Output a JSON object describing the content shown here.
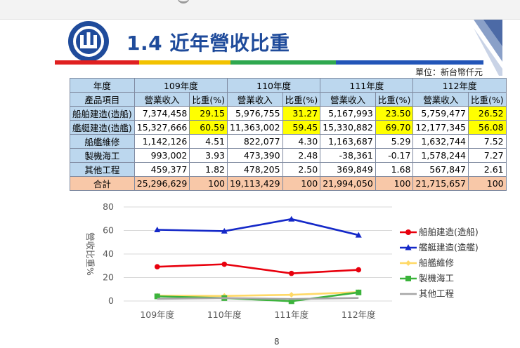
{
  "title": "1.4 近年營收比重",
  "unit_label": "單位：新台幣仟元",
  "page_number": "8",
  "table": {
    "year_header_label": "年度",
    "item_header_label": "產品項目",
    "years": [
      "109年度",
      "110年度",
      "111年度",
      "112年度"
    ],
    "sub_headers": [
      "營業收入",
      "比重(%)"
    ],
    "rows": [
      {
        "name": "船舶建造(造船)",
        "cells": [
          [
            "7,374,458",
            "29.15"
          ],
          [
            "5,976,755",
            "31.27"
          ],
          [
            "5,167,993",
            "23.50"
          ],
          [
            "5,759,477",
            "26.52"
          ]
        ],
        "highlight": true
      },
      {
        "name": "艦艇建造(造艦)",
        "cells": [
          [
            "15,327,666",
            "60.59"
          ],
          [
            "11,363,002",
            "59.45"
          ],
          [
            "15,330,882",
            "69.70"
          ],
          [
            "12,177,345",
            "56.08"
          ]
        ],
        "highlight": true
      },
      {
        "name": "船艦維修",
        "cells": [
          [
            "1,142,126",
            "4.51"
          ],
          [
            "822,077",
            "4.30"
          ],
          [
            "1,163,687",
            "5.29"
          ],
          [
            "1,632,744",
            "7.52"
          ]
        ],
        "highlight": false
      },
      {
        "name": "製機海工",
        "cells": [
          [
            "993,002",
            "3.93"
          ],
          [
            "473,390",
            "2.48"
          ],
          [
            "-38,361",
            "-0.17"
          ],
          [
            "1,578,244",
            "7.27"
          ]
        ],
        "highlight": false
      },
      {
        "name": "其他工程",
        "cells": [
          [
            "459,377",
            "1.82"
          ],
          [
            "478,205",
            "2.50"
          ],
          [
            "369,849",
            "1.68"
          ],
          [
            "567,847",
            "2.61"
          ]
        ],
        "highlight": false
      }
    ],
    "total": {
      "name": "合計",
      "cells": [
        [
          "25,296,629",
          "100"
        ],
        [
          "19,113,429",
          "100"
        ],
        [
          "21,994,050",
          "100"
        ],
        [
          "21,715,657",
          "100"
        ]
      ]
    }
  },
  "chart_data": {
    "type": "line",
    "categories": [
      "109年度",
      "110年度",
      "111年度",
      "112年度"
    ],
    "ylabel": "營收比重%",
    "ylim": [
      0,
      80
    ],
    "yticks": [
      "0",
      "20",
      "40",
      "60",
      "80"
    ],
    "grid": true,
    "legend": "right",
    "series": [
      {
        "name": "船舶建造(造船)",
        "values": [
          29.15,
          31.27,
          23.5,
          26.52
        ],
        "color": "#e8000d",
        "marker": "circle"
      },
      {
        "name": "艦艇建造(造艦)",
        "values": [
          60.59,
          59.45,
          69.7,
          56.08
        ],
        "color": "#1428c8",
        "marker": "triangle"
      },
      {
        "name": "船艦維修",
        "values": [
          4.51,
          4.3,
          5.29,
          7.52
        ],
        "color": "#ffd966",
        "marker": "diamond"
      },
      {
        "name": "製機海工",
        "values": [
          3.93,
          2.48,
          -0.17,
          7.27
        ],
        "color": "#3bb33b",
        "marker": "square"
      },
      {
        "name": "其他工程",
        "values": [
          1.82,
          2.5,
          1.68,
          2.61
        ],
        "color": "#a6a6a6",
        "marker": "none"
      }
    ]
  }
}
